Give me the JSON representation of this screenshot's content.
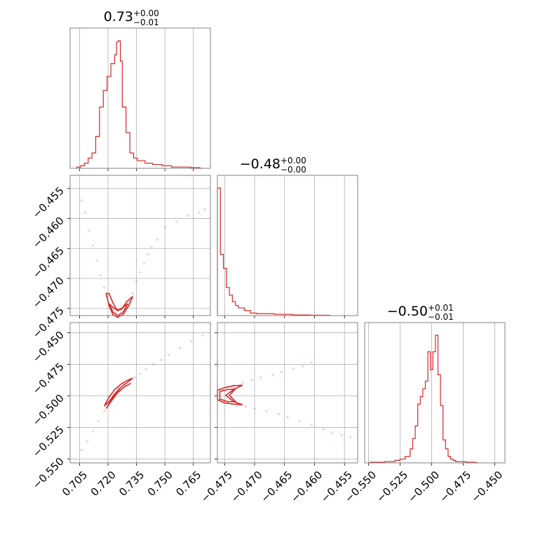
{
  "chart_data": {
    "type": "corner",
    "color": "#d62728",
    "parameters": [
      {
        "range": [
          0.7,
          0.774
        ],
        "ticks": [
          "0.705",
          "0.720",
          "0.735",
          "0.750",
          "0.765"
        ],
        "tick_values": [
          0.705,
          0.72,
          0.735,
          0.75,
          0.765
        ],
        "title": {
          "main": "0.73",
          "upper": "+0.00",
          "lower": "−0.01"
        },
        "histogram": {
          "bins": [
            0.7035,
            0.7055,
            0.7075,
            0.7095,
            0.7115,
            0.7135,
            0.7155,
            0.7175,
            0.7195,
            0.7215,
            0.7235,
            0.7245,
            0.7255,
            0.7265,
            0.7275,
            0.7295,
            0.7315,
            0.7335,
            0.7355,
            0.7395,
            0.7435,
            0.7485,
            0.7535,
            0.7585,
            0.7635,
            0.7685
          ],
          "values": [
            1,
            2,
            4,
            8,
            12,
            25,
            48,
            61,
            72,
            82,
            89,
            99,
            100,
            84,
            48,
            28,
            12,
            8,
            6,
            4,
            3,
            2,
            1,
            1,
            0.5,
            0
          ]
        }
      },
      {
        "range": [
          -0.4762,
          -0.4528
        ],
        "ticks": [
          "−0.475",
          "−0.470",
          "−0.465",
          "−0.460",
          "−0.455"
        ],
        "tick_values": [
          -0.475,
          -0.47,
          -0.465,
          -0.46,
          -0.455
        ],
        "y_ticks": [
          "−0.455",
          "−0.460",
          "−0.465",
          "−0.470",
          "−0.475"
        ],
        "title": {
          "main": "−0.48",
          "upper": "+0.00",
          "lower": "−0.00"
        },
        "histogram": {
          "bins": [
            -0.4762,
            -0.4757,
            -0.4752,
            -0.4747,
            -0.4742,
            -0.4737,
            -0.4732,
            -0.4727,
            -0.4717,
            -0.4707,
            -0.4697,
            -0.4667,
            -0.4637,
            -0.4607,
            -0.4577
          ],
          "values": [
            100,
            48,
            37,
            22,
            16,
            11,
            8,
            6,
            4,
            2,
            1.5,
            1,
            0.5,
            0.3,
            0.2
          ]
        }
      },
      {
        "range": [
          -0.553,
          -0.442
        ],
        "ticks": [
          "−0.550",
          "−0.525",
          "−0.500",
          "−0.475",
          "−0.450"
        ],
        "tick_values": [
          -0.55,
          -0.525,
          -0.5,
          -0.475,
          -0.45
        ],
        "y_ticks": [
          "−0.450",
          "−0.475",
          "−0.500",
          "−0.525",
          "−0.550"
        ],
        "title": {
          "main": "−0.50",
          "upper": "+0.01",
          "lower": "−0.01"
        },
        "histogram": {
          "bins": [
            -0.549,
            -0.545,
            -0.541,
            -0.537,
            -0.533,
            -0.529,
            -0.525,
            -0.521,
            -0.517,
            -0.515,
            -0.513,
            -0.511,
            -0.509,
            -0.507,
            -0.505,
            -0.503,
            -0.501,
            -0.499,
            -0.497,
            -0.495,
            -0.493,
            -0.491,
            -0.489,
            -0.487,
            -0.485,
            -0.483,
            -0.481,
            -0.477,
            -0.473,
            -0.469,
            -0.465
          ],
          "values": [
            0.5,
            0.5,
            0.5,
            1,
            1,
            2,
            3,
            5,
            11,
            19,
            29,
            46,
            52,
            58,
            64,
            87,
            73,
            87,
            100,
            69,
            45,
            18,
            11,
            5,
            3,
            2,
            1,
            1,
            0.5,
            0.5,
            0
          ]
        }
      }
    ],
    "scatter_panels": [
      {
        "x_param": 0,
        "y_param": 1,
        "points": [
          [
            0.706,
            -0.457
          ],
          [
            0.708,
            -0.459
          ],
          [
            0.71,
            -0.462
          ],
          [
            0.712,
            -0.4645
          ],
          [
            0.714,
            -0.467
          ],
          [
            0.716,
            -0.4695
          ],
          [
            0.718,
            -0.4715
          ],
          [
            0.7195,
            -0.473
          ],
          [
            0.721,
            -0.4745
          ],
          [
            0.7225,
            -0.4752
          ],
          [
            0.724,
            -0.4758
          ],
          [
            0.7255,
            -0.4762
          ],
          [
            0.727,
            -0.4758
          ],
          [
            0.729,
            -0.475
          ],
          [
            0.731,
            -0.4738
          ],
          [
            0.733,
            -0.4725
          ],
          [
            0.735,
            -0.4705
          ],
          [
            0.737,
            -0.469
          ],
          [
            0.739,
            -0.4675
          ],
          [
            0.741,
            -0.466
          ],
          [
            0.743,
            -0.4648
          ],
          [
            0.746,
            -0.4635
          ],
          [
            0.75,
            -0.4615
          ],
          [
            0.756,
            -0.4605
          ],
          [
            0.762,
            -0.4595
          ],
          [
            0.768,
            -0.459
          ],
          [
            0.771,
            -0.4585
          ]
        ],
        "contours": [
          [
            [
              0.719,
              -0.4725
            ],
            [
              0.7205,
              -0.4745
            ],
            [
              0.7225,
              -0.476
            ],
            [
              0.725,
              -0.4765
            ],
            [
              0.728,
              -0.476
            ],
            [
              0.731,
              -0.4745
            ],
            [
              0.733,
              -0.473
            ],
            [
              0.73,
              -0.4738
            ],
            [
              0.727,
              -0.4752
            ],
            [
              0.7245,
              -0.4752
            ],
            [
              0.7225,
              -0.474
            ],
            [
              0.7205,
              -0.4725
            ]
          ],
          [
            [
              0.7205,
              -0.4742
            ],
            [
              0.7225,
              -0.4756
            ],
            [
              0.7252,
              -0.4762
            ],
            [
              0.728,
              -0.4756
            ],
            [
              0.7305,
              -0.4742
            ],
            [
              0.728,
              -0.4748
            ],
            [
              0.7252,
              -0.4754
            ],
            [
              0.7225,
              -0.4748
            ]
          ]
        ]
      },
      {
        "x_param": 0,
        "y_param": 2,
        "points": [
          [
            0.706,
            -0.543
          ],
          [
            0.709,
            -0.536
          ],
          [
            0.712,
            -0.528
          ],
          [
            0.715,
            -0.52
          ],
          [
            0.718,
            -0.512
          ],
          [
            0.7205,
            -0.505
          ],
          [
            0.723,
            -0.499
          ],
          [
            0.7255,
            -0.494
          ],
          [
            0.728,
            -0.4905
          ],
          [
            0.731,
            -0.488
          ],
          [
            0.734,
            -0.4855
          ],
          [
            0.737,
            -0.4825
          ],
          [
            0.74,
            -0.479
          ],
          [
            0.744,
            -0.475
          ],
          [
            0.748,
            -0.4715
          ],
          [
            0.752,
            -0.4675
          ],
          [
            0.758,
            -0.462
          ],
          [
            0.764,
            -0.457
          ],
          [
            0.77,
            -0.452
          ]
        ],
        "contours": [
          [
            [
              0.718,
              -0.508
            ],
            [
              0.7205,
              -0.501
            ],
            [
              0.7235,
              -0.495
            ],
            [
              0.727,
              -0.4905
            ],
            [
              0.7305,
              -0.4875
            ],
            [
              0.733,
              -0.486
            ],
            [
              0.73,
              -0.4895
            ],
            [
              0.7265,
              -0.4935
            ],
            [
              0.7235,
              -0.4985
            ],
            [
              0.7205,
              -0.5045
            ]
          ],
          [
            [
              0.719,
              -0.51
            ],
            [
              0.722,
              -0.5025
            ],
            [
              0.7255,
              -0.4965
            ],
            [
              0.729,
              -0.4925
            ],
            [
              0.732,
              -0.49
            ],
            [
              0.7285,
              -0.493
            ],
            [
              0.725,
              -0.4975
            ],
            [
              0.722,
              -0.5035
            ]
          ]
        ]
      },
      {
        "x_param": 1,
        "y_param": 2,
        "points": [
          [
            -0.4755,
            -0.4955
          ],
          [
            -0.4745,
            -0.4925
          ],
          [
            -0.4735,
            -0.4915
          ],
          [
            -0.472,
            -0.4895
          ],
          [
            -0.4705,
            -0.4875
          ],
          [
            -0.469,
            -0.4855
          ],
          [
            -0.467,
            -0.4832
          ],
          [
            -0.4655,
            -0.481
          ],
          [
            -0.4635,
            -0.4785
          ],
          [
            -0.462,
            -0.4765
          ],
          [
            -0.4605,
            -0.4735
          ],
          [
            -0.4745,
            -0.5045
          ],
          [
            -0.473,
            -0.5065
          ],
          [
            -0.4715,
            -0.5085
          ],
          [
            -0.47,
            -0.51
          ],
          [
            -0.468,
            -0.512
          ],
          [
            -0.466,
            -0.5145
          ],
          [
            -0.4645,
            -0.517
          ],
          [
            -0.4625,
            -0.52
          ],
          [
            -0.4605,
            -0.523
          ],
          [
            -0.4585,
            -0.5265
          ],
          [
            -0.457,
            -0.529
          ],
          [
            -0.4555,
            -0.531
          ],
          [
            -0.454,
            -0.5325
          ]
        ],
        "contours": [
          [
            [
              -0.4762,
              -0.4955
            ],
            [
              -0.475,
              -0.4935
            ],
            [
              -0.4735,
              -0.492
            ],
            [
              -0.472,
              -0.4915
            ],
            [
              -0.4735,
              -0.495
            ],
            [
              -0.4748,
              -0.4995
            ],
            [
              -0.4735,
              -0.5045
            ],
            [
              -0.472,
              -0.507
            ],
            [
              -0.4735,
              -0.5065
            ],
            [
              -0.475,
              -0.5055
            ],
            [
              -0.4762,
              -0.503
            ]
          ],
          [
            [
              -0.4758,
              -0.4965
            ],
            [
              -0.4745,
              -0.495
            ],
            [
              -0.4732,
              -0.4945
            ],
            [
              -0.4742,
              -0.4995
            ],
            [
              -0.4732,
              -0.5045
            ],
            [
              -0.4745,
              -0.5045
            ],
            [
              -0.4758,
              -0.5025
            ]
          ]
        ]
      }
    ]
  }
}
